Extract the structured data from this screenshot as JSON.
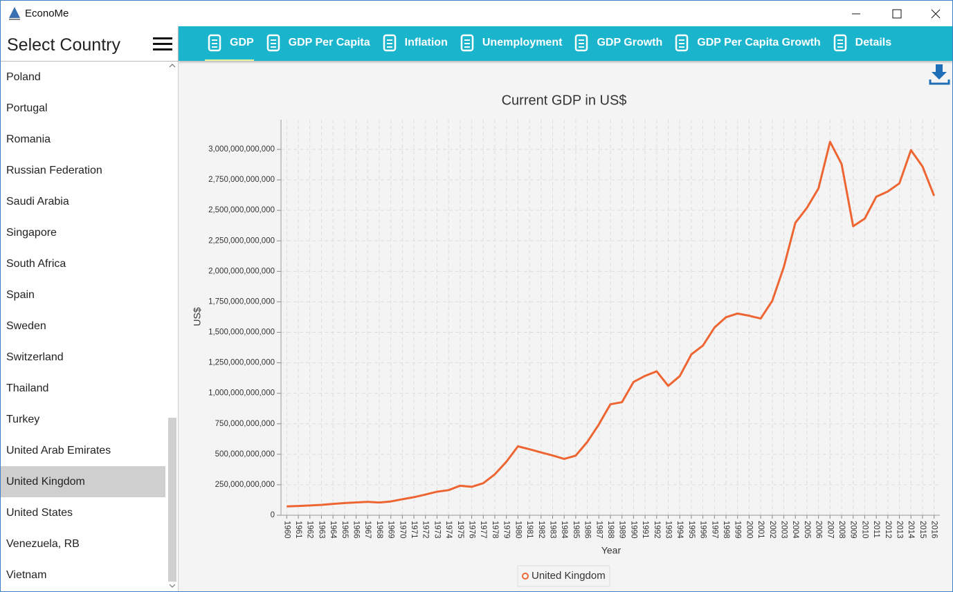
{
  "window": {
    "title": "EconoMe"
  },
  "sidebar": {
    "title": "Select Country",
    "countries": [
      "Poland",
      "Portugal",
      "Romania",
      "Russian Federation",
      "Saudi Arabia",
      "Singapore",
      "South Africa",
      "Spain",
      "Sweden",
      "Switzerland",
      "Thailand",
      "Turkey",
      "United Arab Emirates",
      "United Kingdom",
      "United States",
      "Venezuela, RB",
      "Vietnam"
    ]
  },
  "tabs": [
    "GDP",
    "GDP Per Capita",
    "Inflation",
    "Unemployment",
    "GDP Growth",
    "GDP Per Capita Growth",
    "Details"
  ],
  "chart_data": {
    "type": "line",
    "title": "Current GDP in US$",
    "x_label": "Year",
    "y_label": "US$",
    "categories": [
      "1960",
      "1961",
      "1962",
      "1963",
      "1964",
      "1965",
      "1966",
      "1967",
      "1968",
      "1969",
      "1970",
      "1971",
      "1972",
      "1973",
      "1974",
      "1975",
      "1976",
      "1977",
      "1978",
      "1979",
      "1980",
      "1981",
      "1982",
      "1983",
      "1984",
      "1985",
      "1986",
      "1987",
      "1988",
      "1989",
      "1990",
      "1991",
      "1992",
      "1993",
      "1994",
      "1995",
      "1996",
      "1997",
      "1998",
      "1999",
      "2000",
      "2001",
      "2002",
      "2003",
      "2004",
      "2005",
      "2006",
      "2007",
      "2008",
      "2009",
      "2010",
      "2011",
      "2012",
      "2013",
      "2014",
      "2015",
      "2016"
    ],
    "series": [
      {
        "name": "United Kingdom",
        "color": "#ee6532",
        "values": [
          72000000000,
          76000000000,
          80000000000,
          85000000000,
          93000000000,
          100000000000,
          105000000000,
          110000000000,
          104000000000,
          113000000000,
          131000000000,
          148000000000,
          170000000000,
          193000000000,
          206000000000,
          242000000000,
          233000000000,
          263000000000,
          336000000000,
          439000000000,
          565000000000,
          541000000000,
          515000000000,
          490000000000,
          462000000000,
          489000000000,
          601000000000,
          745000000000,
          910000000000,
          927000000000,
          1093000000000,
          1143000000000,
          1180000000000,
          1061000000000,
          1141000000000,
          1319000000000,
          1391000000000,
          1539000000000,
          1624000000000,
          1654000000000,
          1636000000000,
          1613000000000,
          1758000000000,
          2035000000000,
          2398000000000,
          2521000000000,
          2680000000000,
          3062000000000,
          2880000000000,
          2370000000000,
          2432000000000,
          2612000000000,
          2655000000000,
          2722000000000,
          2994000000000,
          2860000000000,
          2620000000000
        ]
      }
    ],
    "ylim": [
      0,
      3244000000000
    ],
    "yticks": [
      0,
      {
        "value": 250000000000,
        "label": "250,000,000,000"
      },
      {
        "value": 500000000000,
        "label": "500,000,000,000"
      },
      {
        "value": 750000000000,
        "label": "750,000,000,000"
      },
      {
        "value": 1000000000000,
        "label": "1,000,000,000,000"
      },
      {
        "value": 1250000000000,
        "label": "1,250,000,000,000"
      },
      {
        "value": 1500000000000,
        "label": "1,500,000,000,000"
      },
      {
        "value": 1750000000000,
        "label": "1,750,000,000,000"
      },
      {
        "value": 2000000000000,
        "label": "2,000,000,000,000"
      },
      {
        "value": 2250000000000,
        "label": "2,250,000,000,000"
      },
      {
        "value": 2500000000000,
        "label": "2,500,000,000,000"
      },
      {
        "value": 2750000000000,
        "label": "2,750,000,000,000"
      },
      {
        "value": 3000000000000,
        "label": "3,000,000,000,000"
      }
    ],
    "grid": true
  }
}
